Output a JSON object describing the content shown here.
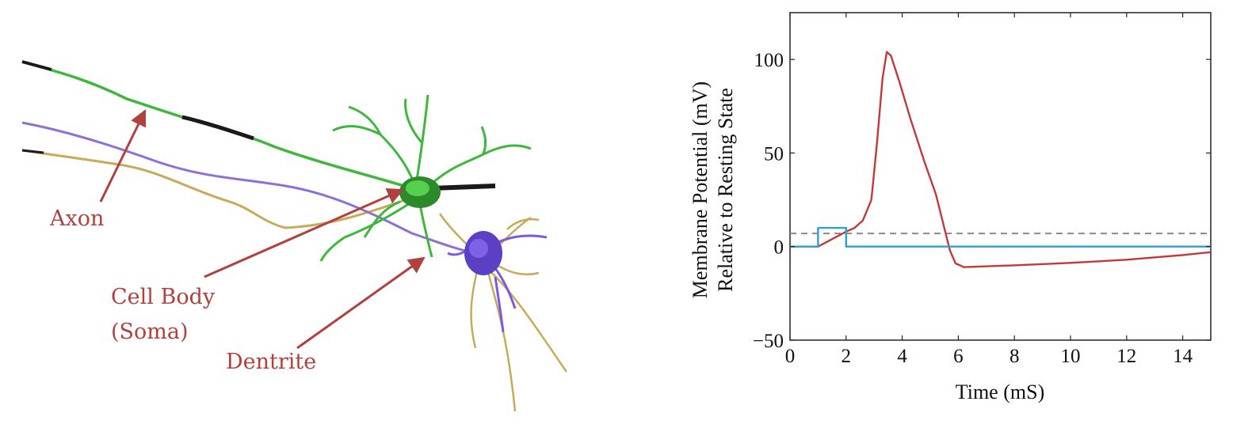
{
  "labels": {
    "axon": "Axon",
    "cell_body_line1": "Cell Body",
    "cell_body_line2": "(Soma)",
    "dendrite": "Dentrite"
  },
  "colors": {
    "label_red": "#b0413e",
    "axon_green": "#3fb63c",
    "axon_black": "#1a1a1a",
    "axon_purple": "#8f6fd6",
    "axon_tan": "#c9a95a",
    "soma_purple": "#5b3fc4",
    "potential_line": "#c0393b",
    "stimulus_line": "#2f9fd6",
    "threshold_line": "#8a8a8a"
  },
  "chart_data": {
    "type": "line",
    "xlabel": "Time (mS)",
    "ylabel_line1": "Membrane Potential (mV)",
    "ylabel_line2": "Relative to Resting State",
    "xlim": [
      0,
      15
    ],
    "ylim": [
      -50,
      125
    ],
    "x_ticks": [
      0,
      2,
      4,
      6,
      8,
      10,
      12,
      14
    ],
    "y_ticks": [
      -50,
      0,
      50,
      100
    ],
    "threshold": 7,
    "series": [
      {
        "color": "#c0393b",
        "points": [
          [
            0,
            0
          ],
          [
            1,
            0
          ],
          [
            1.5,
            4
          ],
          [
            2,
            8
          ],
          [
            2.3,
            10
          ],
          [
            2.6,
            14
          ],
          [
            2.9,
            25
          ],
          [
            3.1,
            55
          ],
          [
            3.3,
            90
          ],
          [
            3.45,
            104
          ],
          [
            3.6,
            102
          ],
          [
            3.9,
            88
          ],
          [
            4.3,
            68
          ],
          [
            4.8,
            45
          ],
          [
            5.2,
            28
          ],
          [
            5.5,
            10
          ],
          [
            5.7,
            -2
          ],
          [
            5.9,
            -9
          ],
          [
            6.2,
            -11
          ],
          [
            8,
            -10
          ],
          [
            10,
            -8.7
          ],
          [
            12,
            -7
          ],
          [
            14,
            -4.5
          ],
          [
            15,
            -3
          ]
        ]
      },
      {
        "color": "#2f9fd6",
        "points": [
          [
            0,
            0
          ],
          [
            1,
            0
          ],
          [
            1,
            10
          ],
          [
            2,
            10
          ],
          [
            2,
            0
          ],
          [
            15,
            0
          ]
        ]
      }
    ]
  }
}
